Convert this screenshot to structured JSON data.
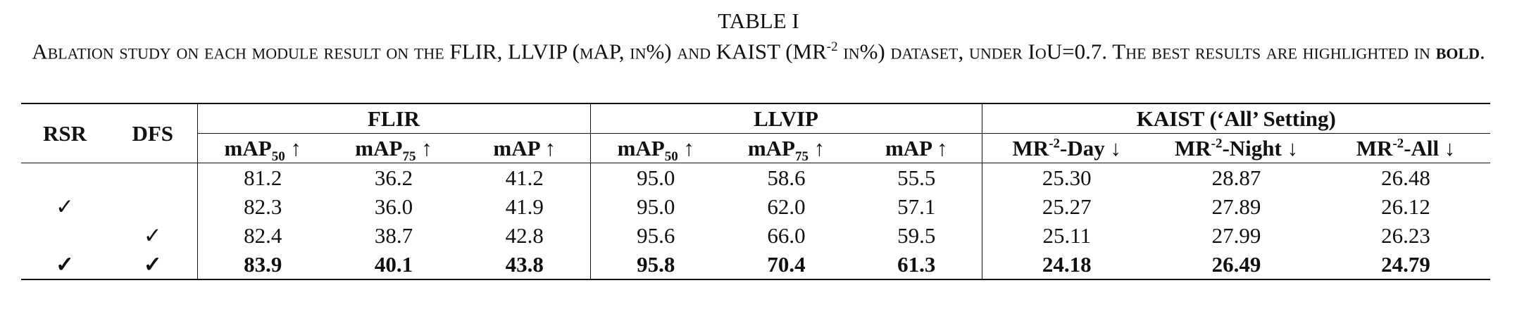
{
  "caption": {
    "label": "TABLE I",
    "parts": [
      "Ablation study on each module result on the FLIR, LLVIP (mAP, in%) and KAIST (MR",
      "-2",
      " in%) dataset, under IoU=0.7. The best results are highlighted in ",
      "bold",
      "."
    ]
  },
  "table": {
    "row_headers": [
      "RSR",
      "DFS"
    ],
    "groups": [
      "FLIR",
      "LLVIP",
      "KAIST (‘All’ Setting)"
    ],
    "columns": [
      {
        "base": "mAP",
        "sub": "50",
        "suffix": " ↑"
      },
      {
        "base": "mAP",
        "sub": "75",
        "suffix": " ↑"
      },
      {
        "base": "mAP",
        "suffix": " ↑"
      },
      {
        "base": "mAP",
        "sub": "50",
        "suffix": " ↑"
      },
      {
        "base": "mAP",
        "sub": "75",
        "suffix": " ↑"
      },
      {
        "base": "mAP",
        "suffix": " ↑"
      },
      {
        "base": "MR",
        "sup": "-2",
        "suffix": "-Day ↓"
      },
      {
        "base": "MR",
        "sup": "-2",
        "suffix": "-Night ↓"
      },
      {
        "base": "MR",
        "sup": "-2",
        "suffix": "-All ↓"
      }
    ],
    "rows": [
      {
        "bold": false,
        "cells": [
          null,
          null,
          "81.2",
          "36.2",
          "41.2",
          "95.0",
          "58.6",
          "55.5",
          "25.30",
          "28.87",
          "26.48"
        ]
      },
      {
        "bold": false,
        "cells": [
          "✓",
          null,
          "82.3",
          "36.0",
          "41.9",
          "95.0",
          "62.0",
          "57.1",
          "25.27",
          "27.89",
          "26.12"
        ]
      },
      {
        "bold": false,
        "cells": [
          null,
          "✓",
          "82.4",
          "38.7",
          "42.8",
          "95.6",
          "66.0",
          "59.5",
          "25.11",
          "27.99",
          "26.23"
        ]
      },
      {
        "bold": true,
        "cells": [
          "✓",
          "✓",
          "83.9",
          "40.1",
          "43.8",
          "95.8",
          "70.4",
          "61.3",
          "24.18",
          "26.49",
          "24.79"
        ]
      }
    ]
  }
}
